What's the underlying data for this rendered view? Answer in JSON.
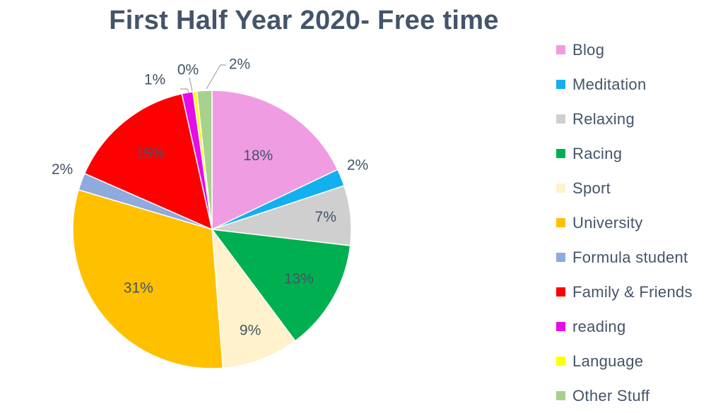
{
  "chart_data": {
    "type": "pie",
    "title": "First Half Year 2020- Free time",
    "start_angle_deg": 0,
    "direction": "clockwise",
    "legend_position": "right",
    "slices": [
      {
        "name": "Blog",
        "value": 18,
        "label": "18%",
        "color": "#f09ce2"
      },
      {
        "name": "Meditation",
        "value": 2,
        "label": "2%",
        "color": "#13b0ef"
      },
      {
        "name": "Relaxing",
        "value": 7,
        "label": "7%",
        "color": "#cfcfcf"
      },
      {
        "name": "Racing",
        "value": 13,
        "label": "13%",
        "color": "#00b050"
      },
      {
        "name": "Sport",
        "value": 9,
        "label": "9%",
        "color": "#fff2cc"
      },
      {
        "name": "University",
        "value": 31,
        "label": "31%",
        "color": "#ffc000"
      },
      {
        "name": "Formula student",
        "value": 2,
        "label": "2%",
        "color": "#8faadc"
      },
      {
        "name": "Family & Friends",
        "value": 15,
        "label": "15%",
        "color": "#ff0000"
      },
      {
        "name": "reading",
        "value": 1.3,
        "label": "1%",
        "color": "#e60ce8"
      },
      {
        "name": "Language",
        "value": 0.45,
        "label": "0%",
        "color": "#ffff00"
      },
      {
        "name": "Other Stuff",
        "value": 1.75,
        "label": "2%",
        "color": "#a9d18e"
      }
    ]
  }
}
